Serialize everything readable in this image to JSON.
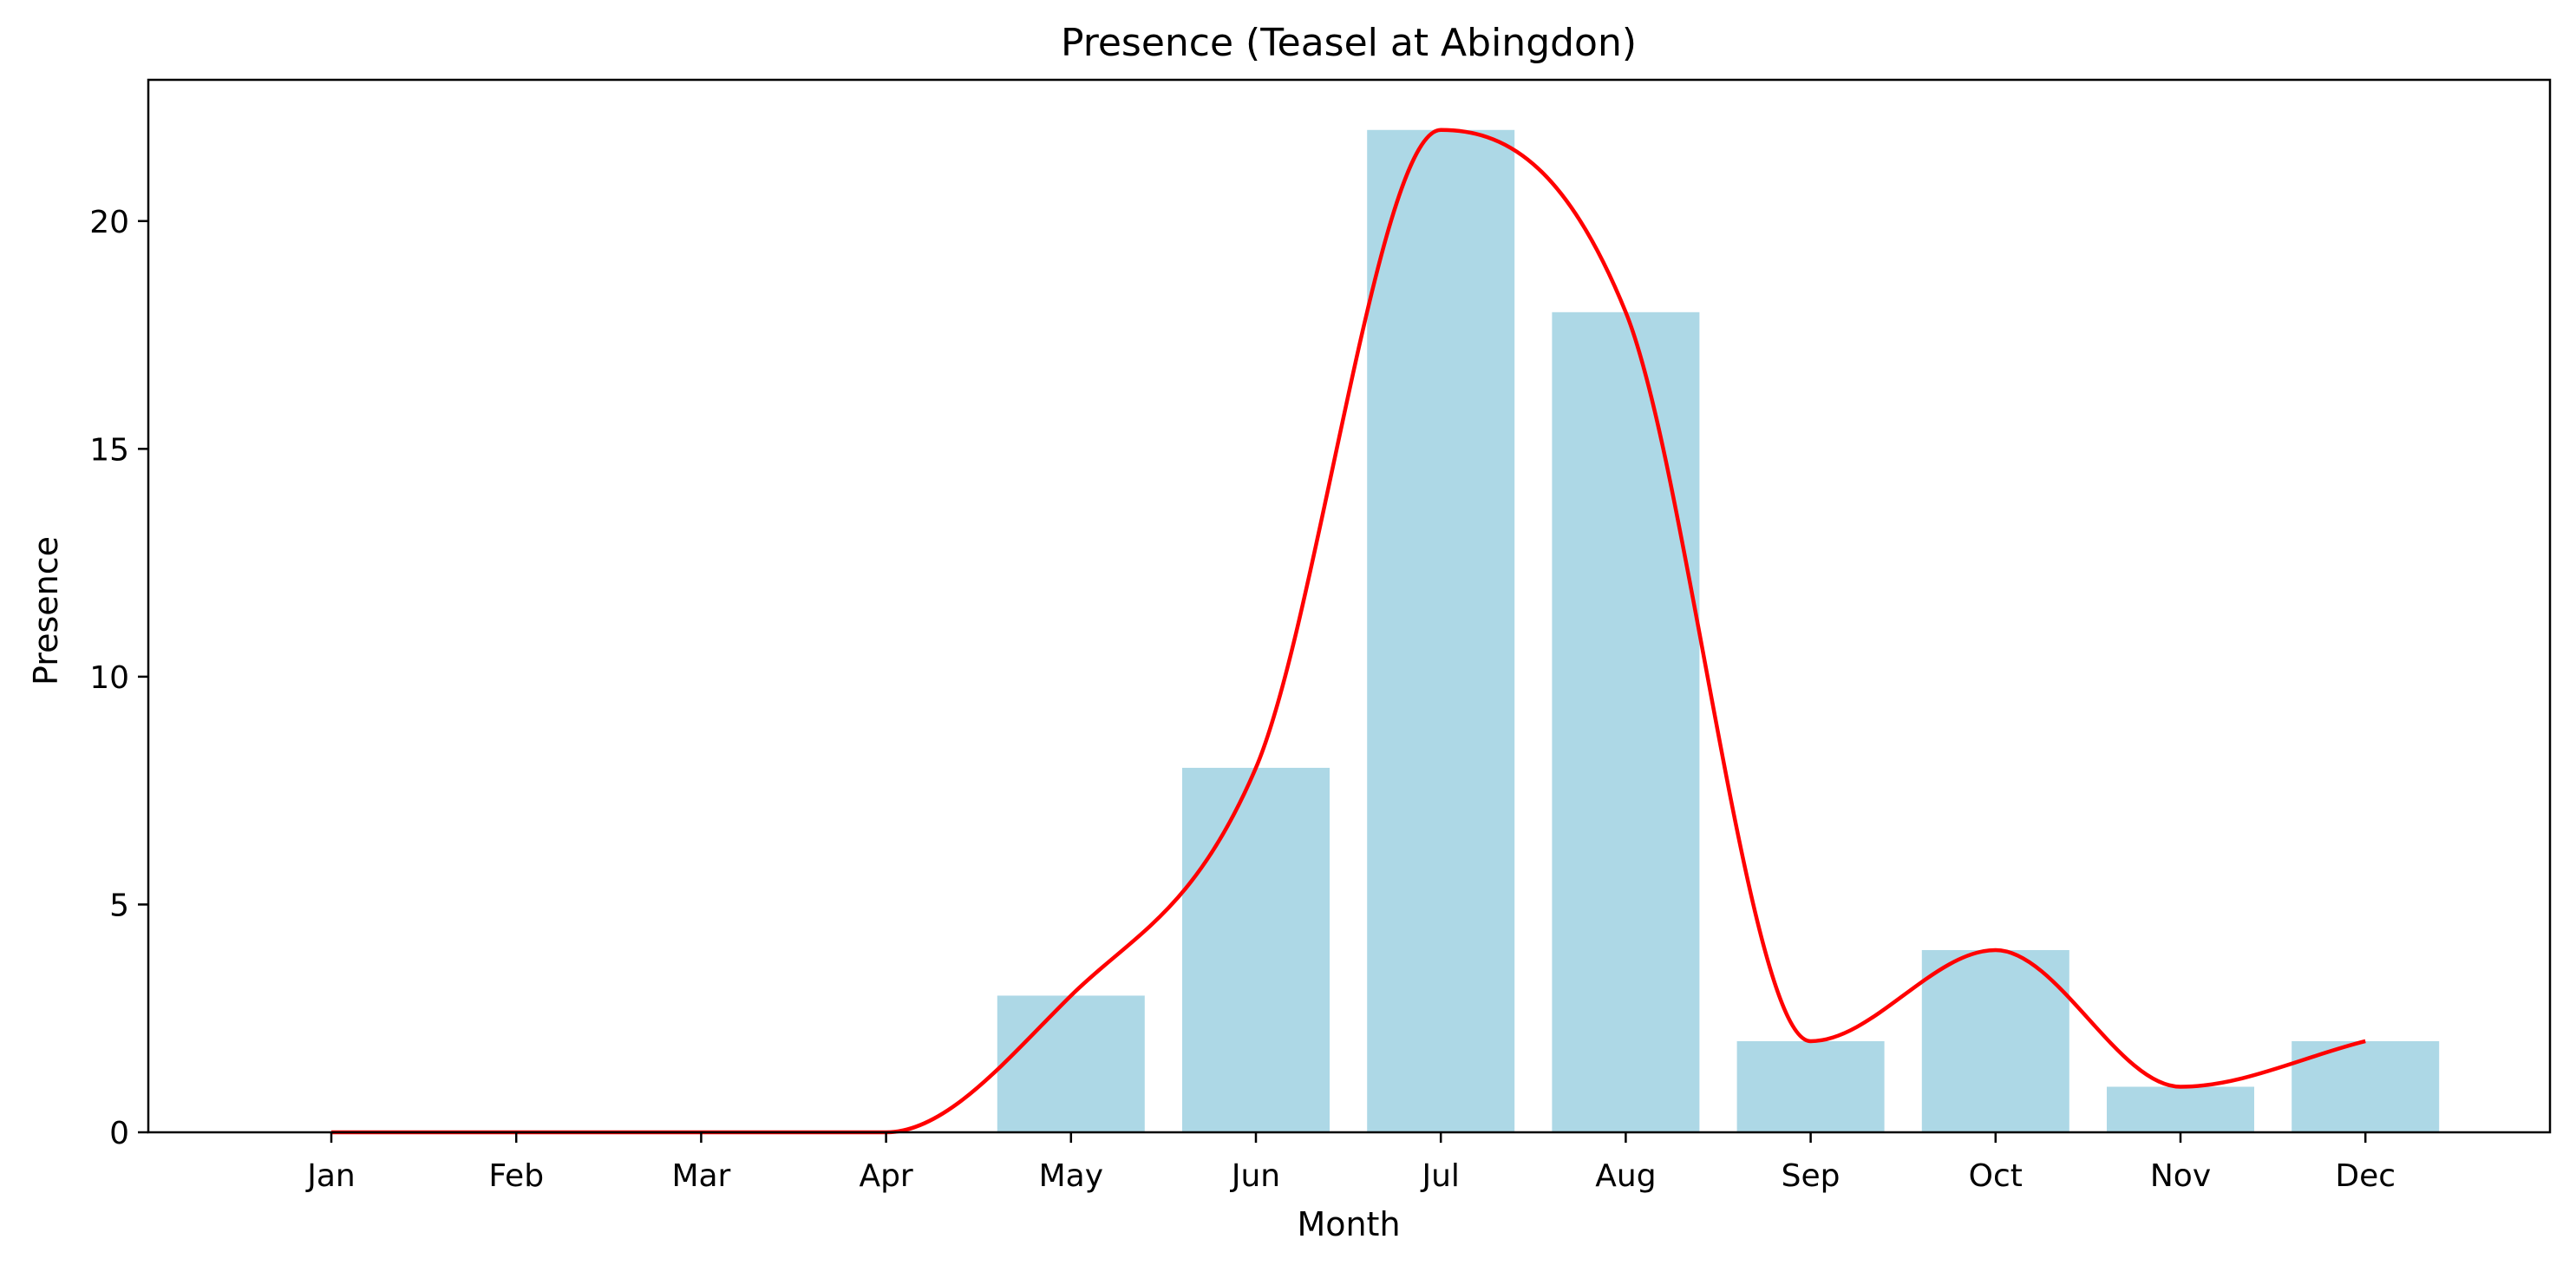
{
  "chart_data": {
    "type": "bar",
    "title": "Presence (Teasel at Abingdon)",
    "xlabel": "Month",
    "ylabel": "Presence",
    "categories": [
      "Jan",
      "Feb",
      "Mar",
      "Apr",
      "May",
      "Jun",
      "Jul",
      "Aug",
      "Sep",
      "Oct",
      "Nov",
      "Dec"
    ],
    "values": [
      0,
      0,
      0,
      0,
      3,
      8,
      22,
      18,
      2,
      4,
      1,
      2
    ],
    "ylim": [
      0,
      23.1
    ],
    "yticks": [
      0,
      5,
      10,
      15,
      20
    ],
    "grid": false,
    "legend": "none",
    "overlay": {
      "type": "line",
      "style": "smoothed",
      "values": [
        0,
        0,
        0,
        0,
        3,
        8,
        22,
        18,
        2,
        4,
        1,
        2
      ]
    },
    "colors": {
      "bar": "#add8e6",
      "line": "#ff0000",
      "axis": "#000000"
    }
  }
}
